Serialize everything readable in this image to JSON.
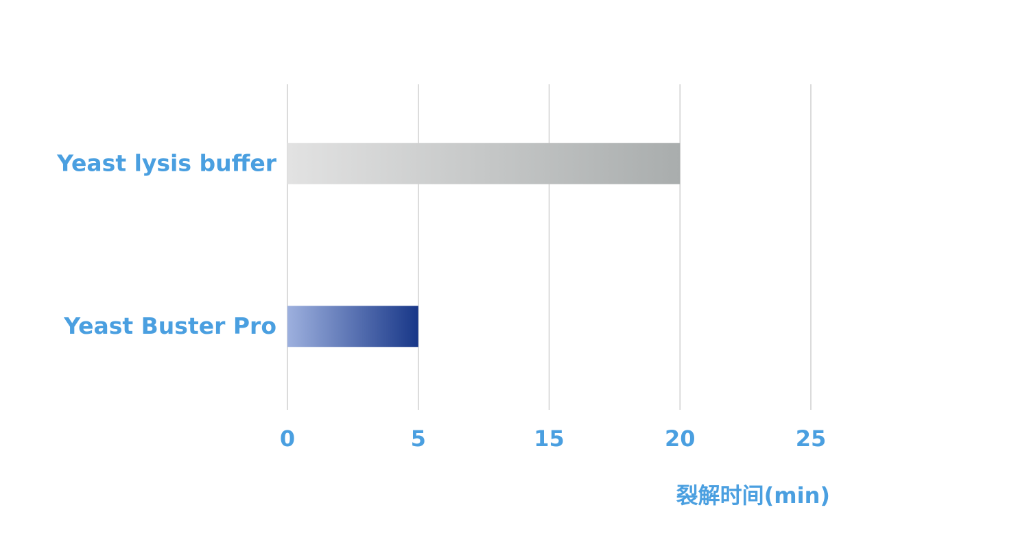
{
  "chart_data": {
    "type": "bar",
    "orientation": "horizontal",
    "categories": [
      "Yeast lysis buffer",
      "Yeast Buster Pro"
    ],
    "values": [
      20,
      5
    ],
    "colors": [
      [
        "#e2e2e2",
        "#a9adad"
      ],
      [
        "#9db0de",
        "#183788"
      ]
    ],
    "xlim": [
      0,
      25
    ],
    "xticks": [
      0,
      5,
      15,
      20,
      25
    ],
    "x_label": "裂解时间(min)",
    "grid": true,
    "text_color": "#4a9fe0",
    "grid_color": "#cfcfcf"
  }
}
